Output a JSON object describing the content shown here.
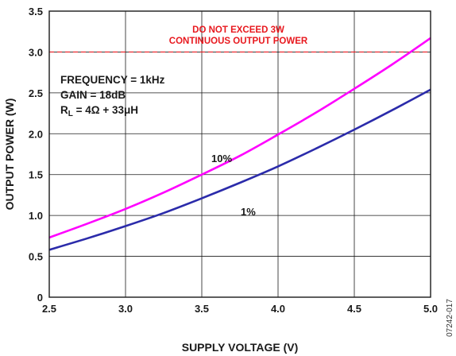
{
  "chart_data": {
    "type": "line",
    "title": "",
    "xlabel": "SUPPLY VOLTAGE (V)",
    "ylabel": "OUTPUT POWER (W)",
    "xlim": [
      2.5,
      5.0
    ],
    "ylim": [
      0,
      3.5
    ],
    "x_ticks": [
      "2.5",
      "3.0",
      "3.5",
      "4.0",
      "4.5",
      "5.0"
    ],
    "y_ticks": [
      "0",
      "0.5",
      "1.0",
      "1.5",
      "2.0",
      "2.5",
      "3.0",
      "3.5"
    ],
    "grid": true,
    "series": [
      {
        "name": "10%",
        "color": "#ff00ff",
        "x": [
          2.5,
          2.75,
          3.0,
          3.25,
          3.5,
          3.75,
          4.0,
          4.25,
          4.5,
          4.75,
          5.0
        ],
        "y": [
          0.73,
          0.9,
          1.08,
          1.28,
          1.5,
          1.73,
          1.99,
          2.26,
          2.55,
          2.85,
          3.17
        ]
      },
      {
        "name": "1%",
        "color": "#2b2baa",
        "x": [
          2.5,
          2.75,
          3.0,
          3.25,
          3.5,
          3.75,
          4.0,
          4.25,
          4.5,
          4.75,
          5.0
        ],
        "y": [
          0.58,
          0.72,
          0.87,
          1.03,
          1.21,
          1.4,
          1.6,
          1.82,
          2.05,
          2.29,
          2.54
        ]
      }
    ],
    "reference_line": {
      "y": 3.0,
      "color": "#e8181e",
      "style": "dashed"
    },
    "annotations": {
      "warning_lines": [
        "DO NOT EXCEED 3W",
        "CONTINUOUS OUTPUT POWER"
      ],
      "warning_color": "#e8181e",
      "conditions": [
        "FREQUENCY = 1kHz",
        "GAIN = 18dB"
      ],
      "rl_main": "R",
      "rl_sub": "L",
      "rl_rest": " = 4Ω + 33μH"
    },
    "figure_id": "07242-017"
  }
}
